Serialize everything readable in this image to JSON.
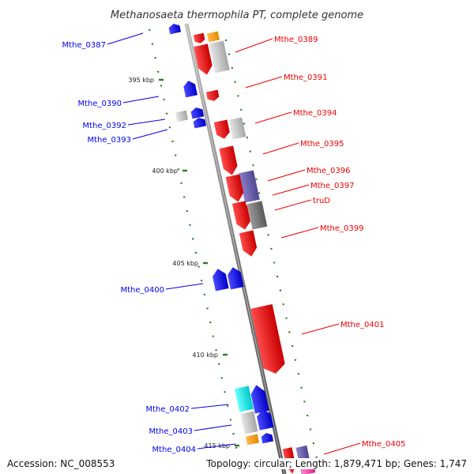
{
  "title": "Methanosaeta thermophila PT, complete genome",
  "accession": "Accession: NC_008553",
  "stats": "Topology: circular; Length: 1,879,471 bp; Genes: 1,747",
  "colors": {
    "reverse": "#0000ee",
    "forward": "#ee0000",
    "backbone": "#888888",
    "tick": "#2a7a2a",
    "grey": "#c0c0c0",
    "orange": "#ff9900",
    "purple": "#6a5fa8",
    "darkgrey": "#777777",
    "cyan": "#00e5e5",
    "pink": "#ff44aa"
  },
  "ticks": [
    {
      "label": "395 kbp"
    },
    {
      "label": "400 kbp"
    },
    {
      "label": "405 kbp"
    },
    {
      "label": "410 kbp"
    },
    {
      "label": "415 kbp"
    }
  ],
  "genes": {
    "left": [
      "Mthe_0387",
      "Mthe_0390",
      "Mthe_0392",
      "Mthe_0393",
      "Mthe_0400",
      "Mthe_0402",
      "Mthe_0403",
      "Mthe_0404"
    ],
    "right": [
      "Mthe_0389",
      "Mthe_0391",
      "Mthe_0394",
      "Mthe_0395",
      "Mthe_0396",
      "Mthe_0397",
      "truD",
      "Mthe_0399",
      "Mthe_0401",
      "Mthe_0405"
    ]
  }
}
